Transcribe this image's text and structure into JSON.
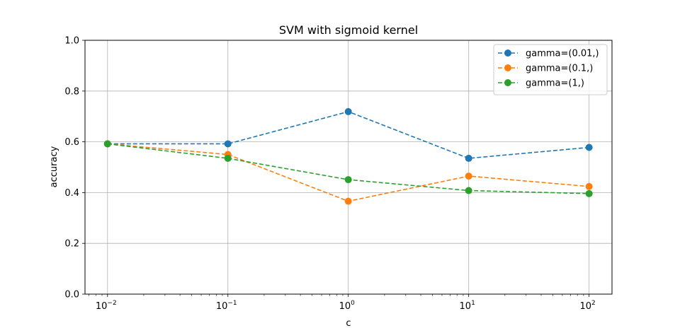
{
  "chart_data": {
    "type": "line",
    "title": "SVM with sigmoid kernel",
    "xlabel": "c",
    "ylabel": "accuracy",
    "xscale": "log",
    "xlim": [
      0.0065,
      155
    ],
    "ylim": [
      0,
      1.0
    ],
    "x": [
      0.01,
      0.1,
      1,
      10,
      100
    ],
    "x_tick_labels": [
      {
        "base": "10",
        "exp": "−2"
      },
      {
        "base": "10",
        "exp": "−1"
      },
      {
        "base": "10",
        "exp": "0"
      },
      {
        "base": "10",
        "exp": "1"
      },
      {
        "base": "10",
        "exp": "2"
      }
    ],
    "y_ticks": [
      0.0,
      0.2,
      0.4,
      0.6,
      0.8,
      1.0
    ],
    "y_tick_labels": [
      "0.0",
      "0.2",
      "0.4",
      "0.6",
      "0.8",
      "1.0"
    ],
    "grid": true,
    "legend_position": "top-right",
    "series": [
      {
        "name": "gamma=(0.01,)",
        "color": "#1f77b4",
        "values": [
          0.592,
          0.592,
          0.719,
          0.535,
          0.578
        ]
      },
      {
        "name": "gamma=(0.1,)",
        "color": "#ff7f0e",
        "values": [
          0.592,
          0.55,
          0.366,
          0.465,
          0.424
        ]
      },
      {
        "name": "gamma=(1,)",
        "color": "#2ca02c",
        "values": [
          0.592,
          0.535,
          0.451,
          0.408,
          0.396
        ]
      }
    ]
  }
}
